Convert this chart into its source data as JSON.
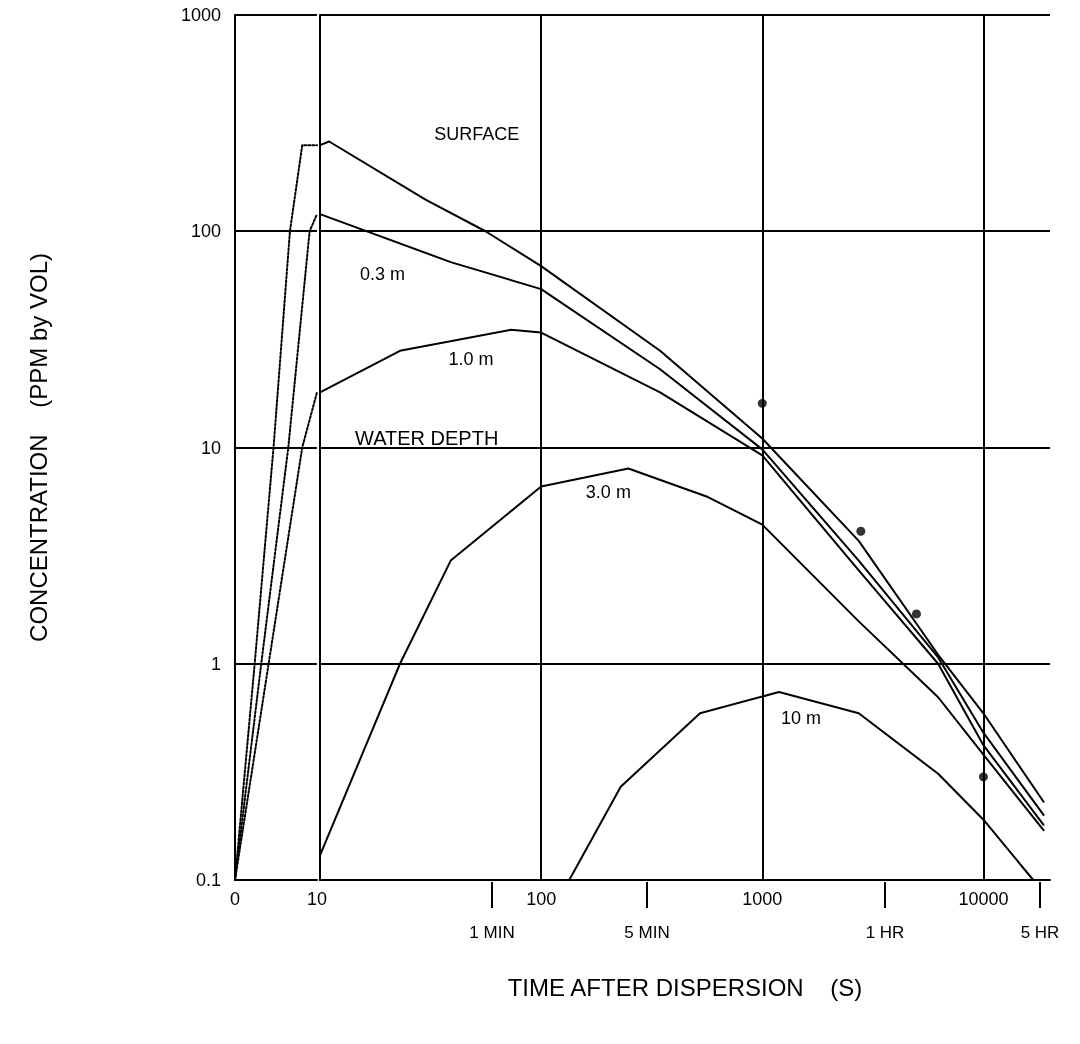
{
  "chart_data": [
    {
      "type": "line",
      "ylabel": "CONCENTRATION    (PPM by VOL)",
      "xlim": [
        0,
        10
      ],
      "xticks": [
        0,
        10
      ],
      "ylim": [
        0.1,
        1000
      ],
      "yticks": [
        0.1,
        1,
        10,
        100,
        1000
      ],
      "log": "y",
      "grid": "y",
      "line_style": "dotted",
      "marker": "none",
      "series": [
        {
          "color": "#000000",
          "x": [
            0,
            2.4,
            4.7,
            6.7,
            8.2,
            10
          ],
          "values": [
            0.1,
            1,
            10,
            100,
            250,
            250
          ]
        },
        {
          "color": "#000000",
          "x": [
            0,
            3.2,
            6.5,
            9.1,
            10
          ],
          "values": [
            0.1,
            1,
            10,
            100,
            120
          ]
        },
        {
          "color": "#000000",
          "x": [
            0,
            4.1,
            8.2,
            10
          ],
          "values": [
            0.1,
            1,
            10,
            18
          ]
        }
      ]
    },
    {
      "type": "line",
      "xlabel": "TIME AFTER DISPERSION    (S)",
      "xlim": [
        10,
        20000
      ],
      "xticks": [
        {
          "value": 10,
          "label": null
        },
        100,
        1000,
        10000
      ],
      "ylim": [
        0.1,
        1000
      ],
      "yticks": [
        0.1,
        1,
        10,
        100,
        1000
      ],
      "log": "xy",
      "grid": true,
      "tick_labels": "x",
      "line_style": "solid",
      "marker": "none",
      "annotations": [
        "WATER DEPTH",
        "1 MIN",
        "5 MIN",
        "1 HR",
        "5 HR"
      ],
      "series": [
        {
          "name": "SURFACE",
          "color": "#000000",
          "x": [
            10,
            11,
            30,
            56,
            100,
            345,
            1000,
            2730,
            6240,
            10000,
            18700
          ],
          "values": [
            250,
            260,
            140,
            100,
            69,
            28,
            11,
            3.7,
            1.1,
            0.59,
            0.23
          ]
        },
        {
          "name": "0.3 m",
          "color": "#000000",
          "x": [
            10,
            39,
            100,
            345,
            1000,
            2730,
            6240,
            10000,
            18700
          ],
          "values": [
            120,
            72,
            54,
            23,
            9.8,
            3,
            1.07,
            0.48,
            0.2
          ]
        },
        {
          "name": "1.0 m",
          "color": "#000000",
          "x": [
            10,
            23,
            73,
            100,
            345,
            1000,
            2730,
            6240,
            10000,
            18700
          ],
          "values": [
            18,
            28,
            35,
            34,
            18,
            9.2,
            2.7,
            1.0,
            0.42,
            0.18
          ]
        },
        {
          "name": "3.0 m",
          "color": "#000000",
          "x": [
            10,
            23,
            39,
            100,
            248,
            568,
            1000,
            2730,
            6240,
            10000,
            18700
          ],
          "values": [
            0.13,
            1.0,
            3.0,
            6.6,
            8.0,
            5.9,
            4.4,
            1.57,
            0.7,
            0.38,
            0.17
          ]
        },
        {
          "name": "10 m",
          "color": "#000000",
          "x": [
            134,
            229,
            523,
            1190,
            2730,
            6240,
            10000,
            16800
          ],
          "values": [
            0.1,
            0.27,
            0.59,
            0.74,
            0.59,
            0.31,
            0.19,
            0.1
          ]
        },
        {
          "type": "scatter",
          "marker": "circle",
          "color": "#000000",
          "x": [
            1000,
            2790,
            4980,
            10000
          ],
          "values": [
            16,
            4.1,
            1.7,
            0.3
          ]
        }
      ]
    }
  ]
}
